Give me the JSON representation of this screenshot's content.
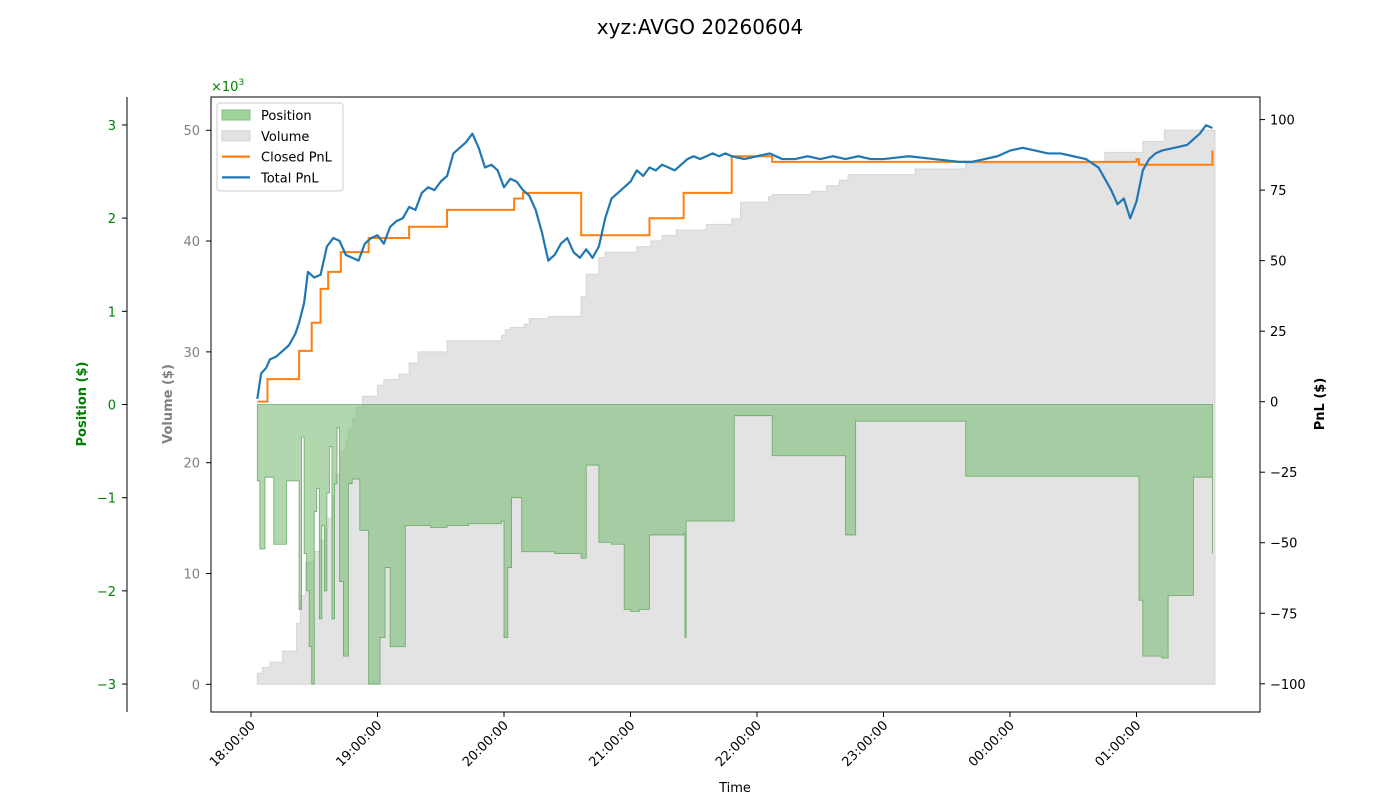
{
  "chart_data": {
    "type": "line",
    "title": "xyz:AVGO 20260604",
    "xlabel": "Time",
    "x_ticks": [
      "18:00:00",
      "19:00:00",
      "20:00:00",
      "21:00:00",
      "22:00:00",
      "23:00:00",
      "00:00:00",
      "01:00:00"
    ],
    "axes": {
      "position": {
        "label": "Position ($)",
        "ylim": [
          -3.3,
          3.3
        ],
        "ticks": [
          "3",
          "2",
          "1",
          "0",
          "−1",
          "−2",
          "−3"
        ],
        "color": "#008000"
      },
      "volume": {
        "label": "Volume ($)",
        "ylim": [
          -2500,
          53000
        ],
        "ticks": [
          "50",
          "40",
          "30",
          "20",
          "10",
          "0"
        ],
        "multiplier": "×10",
        "exponent": "3",
        "color": "#808080"
      },
      "pnl": {
        "label": "PnL ($)",
        "ylim": [
          -110,
          108
        ],
        "ticks": [
          "100",
          "75",
          "50",
          "25",
          "0",
          "−25",
          "−50",
          "−75",
          "−100"
        ],
        "color": "#000000"
      }
    },
    "legend": {
      "placement": "top-left",
      "entries": [
        {
          "label": "Position",
          "kind": "area",
          "color": "#9fd49a"
        },
        {
          "label": "Volume",
          "kind": "area",
          "color": "#e3e3e3"
        },
        {
          "label": "Closed PnL",
          "kind": "line",
          "color": "#ff7f0e"
        },
        {
          "label": "Total PnL",
          "kind": "line",
          "color": "#1f77b4"
        }
      ]
    },
    "series": [
      {
        "name": "Volume",
        "axis": "volume",
        "step": true,
        "x": [
          0.05,
          0.09,
          0.15,
          0.25,
          0.36,
          0.39,
          0.43,
          0.5,
          0.55,
          0.59,
          0.61,
          0.64,
          0.67,
          0.71,
          0.75,
          0.77,
          0.8,
          0.83,
          0.88,
          0.95,
          1.0,
          1.05,
          1.1,
          1.17,
          1.25,
          1.32,
          1.5,
          1.55,
          1.98,
          2.01,
          2.05,
          2.1,
          2.16,
          2.2,
          2.35,
          2.61,
          2.65,
          2.75,
          2.8,
          2.85,
          3.05,
          3.16,
          3.25,
          3.36,
          3.42,
          3.6,
          3.8,
          3.87,
          4.09,
          4.12,
          4.43,
          4.55,
          4.6,
          4.65,
          4.72,
          4.79,
          4.8,
          5.25,
          5.6,
          5.65,
          5.78,
          6.0,
          6.5,
          6.58,
          6.75,
          7.0,
          7.05,
          7.22,
          7.6,
          7.62
        ],
        "y": [
          1000,
          1500,
          2000,
          3000,
          5500,
          8000,
          11000,
          12000,
          13000,
          14000,
          15000,
          17000,
          19000,
          21000,
          22000,
          23000,
          24000,
          25000,
          26000,
          26000,
          27000,
          27500,
          27500,
          28000,
          29000,
          30000,
          30000,
          31000,
          31500,
          32000,
          32200,
          32200,
          32500,
          33000,
          33200,
          35000,
          37000,
          38500,
          39000,
          39000,
          39500,
          40000,
          40500,
          41000,
          41000,
          41500,
          42000,
          43500,
          44000,
          44200,
          44500,
          45000,
          45000,
          45500,
          46000,
          46000,
          46000,
          46500,
          46500,
          47000,
          47000,
          47000,
          47000,
          47000,
          48000,
          48000,
          49000,
          50000,
          50000,
          50000
        ]
      },
      {
        "name": "Position",
        "axis": "position",
        "step": true,
        "x": [
          0.05,
          0.07,
          0.11,
          0.18,
          0.28,
          0.38,
          0.4,
          0.42,
          0.44,
          0.46,
          0.48,
          0.5,
          0.52,
          0.54,
          0.56,
          0.58,
          0.6,
          0.62,
          0.64,
          0.66,
          0.68,
          0.7,
          0.73,
          0.77,
          0.8,
          0.86,
          0.93,
          0.99,
          1.02,
          1.06,
          1.1,
          1.22,
          1.3,
          1.42,
          1.55,
          1.72,
          1.98,
          2.0,
          2.03,
          2.06,
          2.14,
          2.4,
          2.61,
          2.65,
          2.75,
          2.85,
          2.95,
          3.0,
          3.07,
          3.15,
          3.42,
          3.43,
          3.44,
          3.8,
          3.82,
          4.08,
          4.12,
          4.45,
          4.65,
          4.7,
          4.78,
          5.25,
          5.6,
          5.65,
          6.25,
          7.0,
          7.02,
          7.05,
          7.2,
          7.25,
          7.45,
          7.6
        ],
        "y": [
          -0.82,
          -1.55,
          -0.78,
          -1.5,
          -0.82,
          -2.2,
          -0.35,
          -1.6,
          -2.0,
          -2.6,
          -3.0,
          -1.15,
          -0.9,
          -2.3,
          -1.3,
          -2.0,
          -0.95,
          -0.45,
          -2.3,
          -0.85,
          -0.25,
          -1.9,
          -2.7,
          -0.85,
          -0.8,
          -1.35,
          -3.0,
          -3.0,
          -2.5,
          -1.75,
          -2.6,
          -1.3,
          -1.3,
          -1.32,
          -1.3,
          -1.28,
          -1.25,
          -2.5,
          -1.75,
          -1.0,
          -1.58,
          -1.6,
          -1.65,
          -0.65,
          -1.48,
          -1.5,
          -2.2,
          -2.22,
          -2.2,
          -1.4,
          -1.38,
          -2.5,
          -1.25,
          -1.25,
          -0.12,
          -0.12,
          -0.55,
          -0.55,
          -0.55,
          -1.4,
          -0.18,
          -0.18,
          -0.18,
          -0.77,
          -0.77,
          -0.77,
          -2.1,
          -2.7,
          -2.72,
          -2.05,
          -0.78,
          -1.6
        ]
      },
      {
        "name": "Closed PnL",
        "axis": "pnl",
        "step": true,
        "x": [
          0.05,
          0.13,
          0.38,
          0.48,
          0.55,
          0.61,
          0.71,
          0.93,
          1.25,
          1.55,
          1.98,
          2.08,
          2.15,
          2.6,
          2.61,
          3.15,
          3.42,
          3.8,
          4.12,
          7.0,
          7.02,
          7.6
        ],
        "y": [
          0,
          8,
          18,
          28,
          40,
          46,
          53,
          58,
          62,
          68,
          68,
          72,
          74,
          74,
          59,
          65,
          74,
          87,
          85,
          86,
          84,
          89
        ]
      },
      {
        "name": "Total PnL",
        "axis": "pnl",
        "step": false,
        "x": [
          0.05,
          0.08,
          0.12,
          0.15,
          0.2,
          0.25,
          0.3,
          0.35,
          0.38,
          0.42,
          0.45,
          0.5,
          0.55,
          0.6,
          0.65,
          0.7,
          0.75,
          0.8,
          0.85,
          0.9,
          0.95,
          1.0,
          1.05,
          1.1,
          1.15,
          1.2,
          1.25,
          1.3,
          1.35,
          1.4,
          1.45,
          1.5,
          1.55,
          1.6,
          1.65,
          1.7,
          1.75,
          1.8,
          1.85,
          1.9,
          1.95,
          2.0,
          2.05,
          2.1,
          2.15,
          2.2,
          2.25,
          2.3,
          2.35,
          2.4,
          2.45,
          2.5,
          2.55,
          2.6,
          2.65,
          2.7,
          2.75,
          2.8,
          2.85,
          2.9,
          2.95,
          3.0,
          3.05,
          3.1,
          3.15,
          3.2,
          3.25,
          3.3,
          3.35,
          3.4,
          3.45,
          3.5,
          3.55,
          3.6,
          3.65,
          3.7,
          3.75,
          3.8,
          3.9,
          4.0,
          4.1,
          4.2,
          4.3,
          4.4,
          4.5,
          4.6,
          4.7,
          4.8,
          4.9,
          5.0,
          5.2,
          5.4,
          5.6,
          5.7,
          5.8,
          5.9,
          6.0,
          6.1,
          6.2,
          6.3,
          6.4,
          6.5,
          6.6,
          6.7,
          6.75,
          6.8,
          6.85,
          6.9,
          6.95,
          7.0,
          7.05,
          7.1,
          7.15,
          7.2,
          7.3,
          7.4,
          7.5,
          7.55,
          7.6
        ],
        "y": [
          1,
          10,
          12,
          15,
          16,
          18,
          20,
          24,
          28,
          35,
          46,
          44,
          45,
          55,
          58,
          57,
          52,
          51,
          50,
          56,
          58,
          59,
          56,
          62,
          64,
          65,
          69,
          68,
          74,
          76,
          75,
          78,
          80,
          88,
          90,
          92,
          95,
          90,
          83,
          84,
          82,
          76,
          79,
          78,
          75,
          73,
          68,
          60,
          50,
          52,
          56,
          58,
          53,
          51,
          54,
          51,
          55,
          65,
          72,
          74,
          76,
          78,
          82,
          80,
          83,
          82,
          84,
          83,
          82,
          84,
          86,
          87,
          86,
          87,
          88,
          87,
          88,
          87,
          86,
          87,
          88,
          86,
          86,
          87,
          86,
          87,
          86,
          87,
          86,
          86,
          87,
          86,
          85,
          85,
          86,
          87,
          89,
          90,
          89,
          88,
          88,
          87,
          86,
          83,
          79,
          75,
          70,
          72,
          65,
          71,
          82,
          86,
          88,
          89,
          90,
          91,
          95,
          98,
          97
        ]
      }
    ]
  }
}
